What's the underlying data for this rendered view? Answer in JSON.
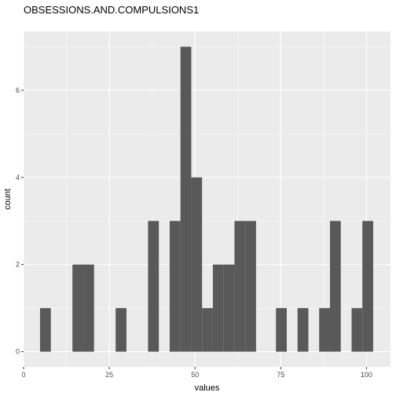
{
  "chart_data": {
    "type": "histogram",
    "title": "OBSESSIONS.AND.COMPULSIONS1",
    "xlabel": "values",
    "ylabel": "count",
    "xlim": [
      0,
      107
    ],
    "ylim": [
      -0.35,
      7.35
    ],
    "x_ticks": [
      0,
      25,
      50,
      75,
      100
    ],
    "y_ticks": [
      0,
      2,
      4,
      6
    ],
    "bin_width": 3.15,
    "bins": [
      {
        "start": 4.8,
        "end": 7.95,
        "count": 1
      },
      {
        "start": 14.25,
        "end": 17.4,
        "count": 2
      },
      {
        "start": 17.4,
        "end": 20.55,
        "count": 2
      },
      {
        "start": 26.85,
        "end": 30.0,
        "count": 1
      },
      {
        "start": 36.3,
        "end": 39.45,
        "count": 3
      },
      {
        "start": 42.6,
        "end": 45.75,
        "count": 3
      },
      {
        "start": 45.75,
        "end": 48.9,
        "count": 7
      },
      {
        "start": 48.9,
        "end": 52.05,
        "count": 4
      },
      {
        "start": 52.05,
        "end": 55.2,
        "count": 1
      },
      {
        "start": 55.2,
        "end": 58.35,
        "count": 2
      },
      {
        "start": 58.35,
        "end": 61.5,
        "count": 2
      },
      {
        "start": 61.5,
        "end": 64.65,
        "count": 3
      },
      {
        "start": 64.65,
        "end": 67.8,
        "count": 3
      },
      {
        "start": 73.6,
        "end": 76.75,
        "count": 1
      },
      {
        "start": 79.9,
        "end": 83.05,
        "count": 1
      },
      {
        "start": 86.2,
        "end": 89.35,
        "count": 1
      },
      {
        "start": 89.35,
        "end": 92.5,
        "count": 3
      },
      {
        "start": 95.65,
        "end": 98.8,
        "count": 1
      },
      {
        "start": 98.8,
        "end": 101.95,
        "count": 3
      }
    ],
    "grid": true,
    "colors": {
      "panel_background": "#ebebeb",
      "grid_line": "#ffffff",
      "bar_fill": "#595959",
      "tick_label": "#4d4d4d",
      "tick_mark": "#333333"
    }
  }
}
